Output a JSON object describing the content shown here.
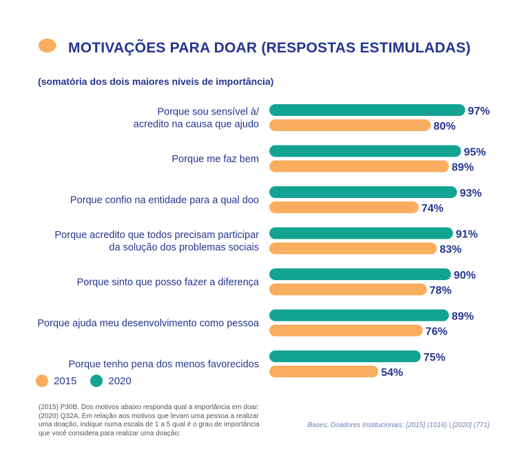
{
  "title": "MOTIVAÇÕES PARA DOAR (RESPOSTAS ESTIMULADAS)",
  "subtitle": "(somatória dos dois maiores níveis de importância)",
  "colors": {
    "s2015": "#F8AE5E",
    "s2020": "#13A393",
    "text": "#263590",
    "title_icon": "#F8AE5E"
  },
  "legend": {
    "item_2015": "2015",
    "item_2020": "2020"
  },
  "footnote": "(2015) P30B. Dos motivos abaixo responda qual a importância em doar: (2020) Q32A. Em relação aos motivos que levam uma pessoa a realizar uma doação,  indique numa escala de 1 a 5 qual é o grau de importância que você considera para realizar uma doação:",
  "bases": "Bases: Doadores Institucionais: [2015] (1016) | [2020]  (771)",
  "chart_data": {
    "type": "bar",
    "orientation": "horizontal",
    "xlim": [
      0,
      100
    ],
    "unit": "%",
    "categories": [
      [
        "Porque sou sensível à/",
        "acredito na causa que ajudo"
      ],
      [
        "Porque me faz bem"
      ],
      [
        "Porque confio na entidade para a qual doo"
      ],
      [
        "Porque acredito que todos precisam participar",
        "da solução dos problemas sociais"
      ],
      [
        "Porque sinto que posso fazer a diferença"
      ],
      [
        "Porque ajuda meu desenvolvimento como pessoa"
      ],
      [
        "Porque tenho pena dos menos favorecidos"
      ]
    ],
    "series": [
      {
        "name": "2020",
        "color": "#13A393",
        "values": [
          97,
          95,
          93,
          91,
          90,
          89,
          75
        ]
      },
      {
        "name": "2015",
        "color": "#F8AE5E",
        "values": [
          80,
          89,
          74,
          83,
          78,
          76,
          54
        ]
      }
    ],
    "data_labels": [
      [
        "97%",
        "95%",
        "93%",
        "91%",
        "90%",
        "89%",
        "75%"
      ],
      [
        "80%",
        "89%",
        "74%",
        "83%",
        "78%",
        "76%",
        "54%"
      ]
    ],
    "grid": false
  }
}
